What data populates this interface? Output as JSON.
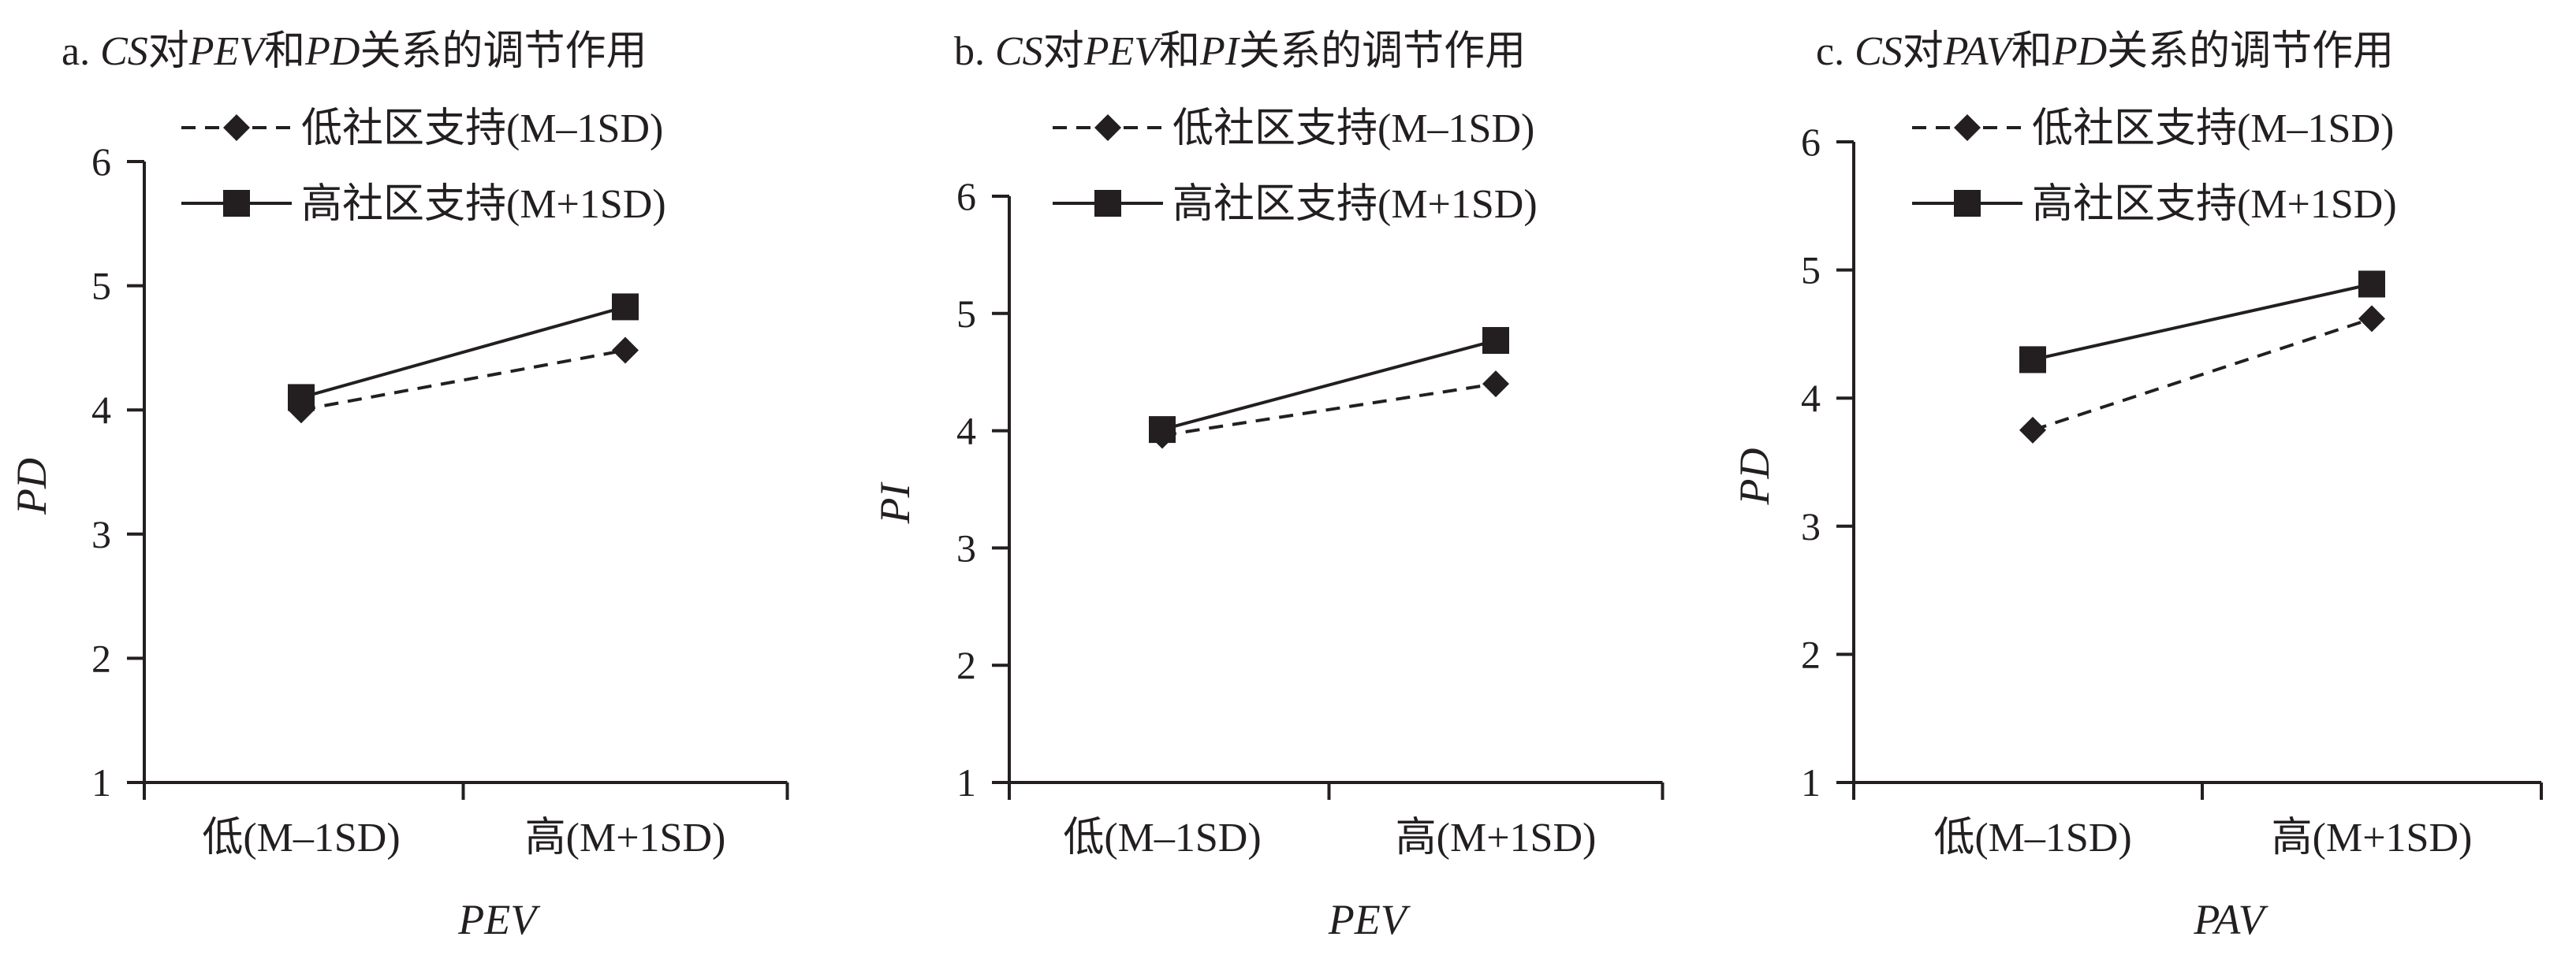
{
  "legend": {
    "low": "低社区支持(M–1SD)",
    "high": "高社区支持(M+1SD)"
  },
  "colors": {
    "ink": "#231f20",
    "background": "#ffffff"
  },
  "chart_data": [
    {
      "type": "line",
      "title": {
        "prefix": "a. ",
        "moderator": "CS",
        "connector1": "对",
        "predictor": "PEV",
        "connector2": "和",
        "outcome": "PD",
        "suffix": "关系的调节作用"
      },
      "xlabel": "PEV",
      "ylabel": "PD",
      "categories": [
        "低(M–1SD)",
        "高(M+1SD)"
      ],
      "ylim": [
        1,
        6
      ],
      "yticks": [
        1,
        2,
        3,
        4,
        5,
        6
      ],
      "legend_position": "top-left",
      "grid": false,
      "series": [
        {
          "name": "低社区支持(M–1SD)",
          "marker": "diamond",
          "line": "dashed",
          "values": [
            4.0,
            4.48
          ]
        },
        {
          "name": "高社区支持(M+1SD)",
          "marker": "square",
          "line": "solid",
          "values": [
            4.1,
            4.83
          ]
        }
      ]
    },
    {
      "type": "line",
      "title": {
        "prefix": "b. ",
        "moderator": "CS",
        "connector1": "对",
        "predictor": "PEV",
        "connector2": "和",
        "outcome": "PI",
        "suffix": "关系的调节作用"
      },
      "xlabel": "PEV",
      "ylabel": "PI",
      "categories": [
        "低(M–1SD)",
        "高(M+1SD)"
      ],
      "ylim": [
        1,
        6
      ],
      "yticks": [
        1,
        2,
        3,
        4,
        5,
        6
      ],
      "legend_position": "top-left",
      "grid": false,
      "series": [
        {
          "name": "低社区支持(M–1SD)",
          "marker": "diamond",
          "line": "dashed",
          "values": [
            3.96,
            4.4
          ]
        },
        {
          "name": "高社区支持(M+1SD)",
          "marker": "square",
          "line": "solid",
          "values": [
            4.01,
            4.77
          ]
        }
      ]
    },
    {
      "type": "line",
      "title": {
        "prefix": "c. ",
        "moderator": "CS",
        "connector1": "对",
        "predictor": "PAV",
        "connector2": "和",
        "outcome": "PD",
        "suffix": "关系的调节作用"
      },
      "xlabel": "PAV",
      "ylabel": "PD",
      "categories": [
        "低(M–1SD)",
        "高(M+1SD)"
      ],
      "ylim": [
        1,
        6
      ],
      "yticks": [
        1,
        2,
        3,
        4,
        5,
        6
      ],
      "legend_position": "top-left",
      "grid": false,
      "series": [
        {
          "name": "低社区支持(M–1SD)",
          "marker": "diamond",
          "line": "dashed",
          "values": [
            3.75,
            4.62
          ]
        },
        {
          "name": "高社区支持(M+1SD)",
          "marker": "square",
          "line": "solid",
          "values": [
            4.3,
            4.89
          ]
        }
      ]
    }
  ]
}
